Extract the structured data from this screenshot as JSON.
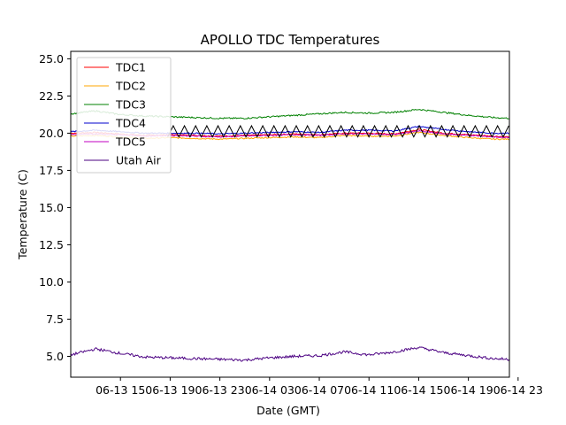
{
  "chart_data": {
    "type": "line",
    "title": "APOLLO TDC Temperatures",
    "xlabel": "Date (GMT)",
    "ylabel": "Temperature (C)",
    "xlim": [
      11.0,
      46.3
    ],
    "ylim": [
      3.6,
      25.5
    ],
    "grid": false,
    "legend_placement": "top-left",
    "x_units": "hours since 06-13 00:00 GMT",
    "xticks": [
      {
        "value": 15,
        "label": "06-13 15"
      },
      {
        "value": 19,
        "label": "06-13 19"
      },
      {
        "value": 23,
        "label": "06-13 23"
      },
      {
        "value": 27,
        "label": "06-14 03"
      },
      {
        "value": 31,
        "label": "06-14 07"
      },
      {
        "value": 35,
        "label": "06-14 11"
      },
      {
        "value": 39,
        "label": "06-14 15"
      },
      {
        "value": 43,
        "label": "06-14 19"
      },
      {
        "value": 47,
        "label": "06-14 23"
      }
    ],
    "yticks": [
      {
        "value": 5.0,
        "label": "5.0"
      },
      {
        "value": 7.5,
        "label": "7.5"
      },
      {
        "value": 10.0,
        "label": "10.0"
      },
      {
        "value": 12.5,
        "label": "12.5"
      },
      {
        "value": 15.0,
        "label": "15.0"
      },
      {
        "value": 17.5,
        "label": "17.5"
      },
      {
        "value": 20.0,
        "label": "20.0"
      },
      {
        "value": 22.5,
        "label": "22.5"
      },
      {
        "value": 25.0,
        "label": "25.0"
      }
    ],
    "series": [
      {
        "name": "TDC1",
        "color": "#ff0000",
        "x": [
          11.0,
          13.0,
          15.0,
          17.0,
          19.0,
          21.0,
          23.0,
          25.0,
          27.0,
          29.0,
          31.0,
          33.0,
          35.0,
          37.0,
          39.0,
          41.0,
          43.0,
          45.0,
          46.3
        ],
        "y": [
          20.0,
          20.05,
          19.95,
          19.85,
          19.9,
          19.85,
          19.8,
          19.85,
          19.9,
          19.95,
          19.9,
          20.0,
          20.0,
          19.95,
          20.25,
          20.0,
          19.9,
          19.8,
          19.75
        ]
      },
      {
        "name": "TDC2",
        "color": "#ffa500",
        "x": [
          11.0,
          13.0,
          15.0,
          17.0,
          19.0,
          21.0,
          23.0,
          25.0,
          27.0,
          29.0,
          31.0,
          33.0,
          35.0,
          37.0,
          39.0,
          41.0,
          43.0,
          45.0,
          46.3
        ],
        "y": [
          19.8,
          19.85,
          19.75,
          19.65,
          19.7,
          19.65,
          19.6,
          19.65,
          19.7,
          19.75,
          19.7,
          19.85,
          19.8,
          19.8,
          20.05,
          19.85,
          19.7,
          19.6,
          19.6
        ]
      },
      {
        "name": "TDC3",
        "color": "#008000",
        "x": [
          11.0,
          13.0,
          15.0,
          17.0,
          19.0,
          21.0,
          23.0,
          25.0,
          27.0,
          29.0,
          31.0,
          33.0,
          35.0,
          37.0,
          39.0,
          41.0,
          43.0,
          45.0,
          46.3
        ],
        "y": [
          21.3,
          21.5,
          21.25,
          21.15,
          21.1,
          21.05,
          21.0,
          21.0,
          21.1,
          21.2,
          21.3,
          21.4,
          21.35,
          21.4,
          21.6,
          21.4,
          21.2,
          21.05,
          21.0
        ]
      },
      {
        "name": "TDC4",
        "color": "#0000cd",
        "x": [
          11.0,
          13.0,
          15.0,
          17.0,
          19.0,
          21.0,
          23.0,
          25.0,
          27.0,
          29.0,
          31.0,
          33.0,
          35.0,
          37.0,
          39.0,
          41.0,
          43.0,
          45.0,
          46.3
        ],
        "y": [
          20.1,
          20.2,
          20.1,
          20.0,
          20.0,
          20.0,
          19.95,
          20.0,
          20.05,
          20.1,
          20.05,
          20.2,
          20.2,
          20.15,
          20.45,
          20.25,
          20.1,
          20.0,
          20.0
        ]
      },
      {
        "name": "TDC5",
        "color": "#c000c0",
        "x": [
          11.0,
          13.0,
          15.0,
          17.0,
          19.0,
          21.0,
          23.0,
          25.0,
          27.0,
          29.0,
          31.0,
          33.0,
          35.0,
          37.0,
          39.0,
          41.0,
          43.0,
          45.0,
          46.3
        ],
        "y": [
          19.9,
          19.95,
          19.9,
          19.8,
          19.85,
          19.8,
          19.75,
          19.8,
          19.85,
          19.9,
          19.85,
          19.95,
          19.95,
          19.9,
          20.15,
          19.95,
          19.85,
          19.75,
          19.7
        ]
      },
      {
        "name": "Utah Air",
        "color": "#4b0082",
        "x": [
          11.0,
          13.0,
          15.0,
          17.0,
          19.0,
          21.0,
          23.0,
          25.0,
          27.0,
          29.0,
          31.0,
          33.0,
          35.0,
          37.0,
          39.0,
          41.0,
          43.0,
          45.0,
          46.3
        ],
        "y": [
          5.1,
          5.5,
          5.2,
          4.95,
          4.9,
          4.85,
          4.8,
          4.75,
          4.9,
          5.0,
          5.05,
          5.3,
          5.1,
          5.3,
          5.6,
          5.25,
          5.05,
          4.85,
          4.8
        ]
      }
    ],
    "heater_cycle": {
      "series": "TDC4",
      "trace_color": "#000000",
      "low": 19.75,
      "high": 20.5,
      "period_hours": 0.9,
      "start_hour": 18.8,
      "end_hour": 46.3
    }
  }
}
